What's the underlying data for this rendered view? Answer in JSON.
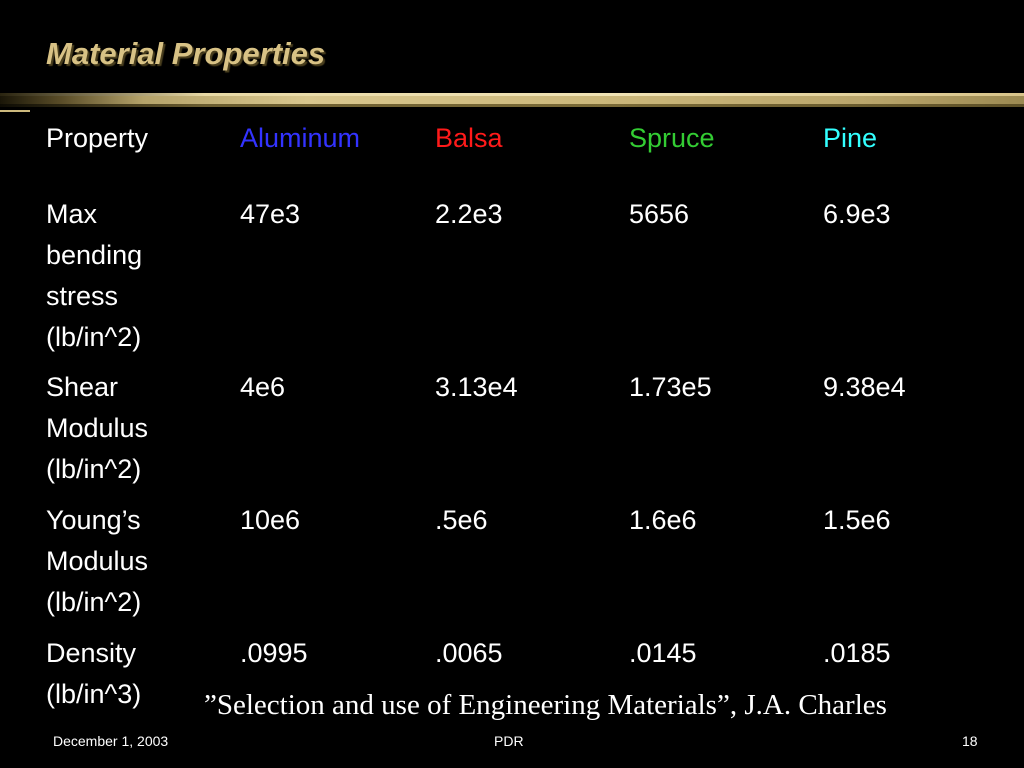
{
  "slide": {
    "title": "Material Properties",
    "table": {
      "headers": [
        {
          "label": "Property",
          "color": "#ffffff"
        },
        {
          "label": "Aluminum",
          "color": "#3333ff"
        },
        {
          "label": "Balsa",
          "color": "#ff1a1a"
        },
        {
          "label": "Spruce",
          "color": "#33cc33"
        },
        {
          "label": "Pine",
          "color": "#33ffff"
        }
      ],
      "rows": [
        {
          "property": "Max\nbending\nstress\n(lb/in^2)",
          "values": [
            "47e3",
            "2.2e3",
            "5656",
            "6.9e3"
          ]
        },
        {
          "property": "Shear\nModulus\n(lb/in^2)",
          "values": [
            "4e6",
            "3.13e4",
            "1.73e5",
            "9.38e4"
          ]
        },
        {
          "property": "Young’s\nModulus\n(lb/in^2)",
          "values": [
            "10e6",
            ".5e6",
            "1.6e6",
            "1.5e6"
          ]
        },
        {
          "property": "Density\n(lb/in^3)",
          "values": [
            ".0995",
            ".0065",
            ".0145",
            ".0185"
          ]
        }
      ]
    },
    "citation": "”Selection and use of Engineering Materials”, J.A. Charles",
    "footer": {
      "date": "December 1, 2003",
      "center": "PDR",
      "page": "18"
    },
    "colors": {
      "background": "#000000",
      "title": "#d8c285",
      "rule": "#cdb97d"
    }
  }
}
